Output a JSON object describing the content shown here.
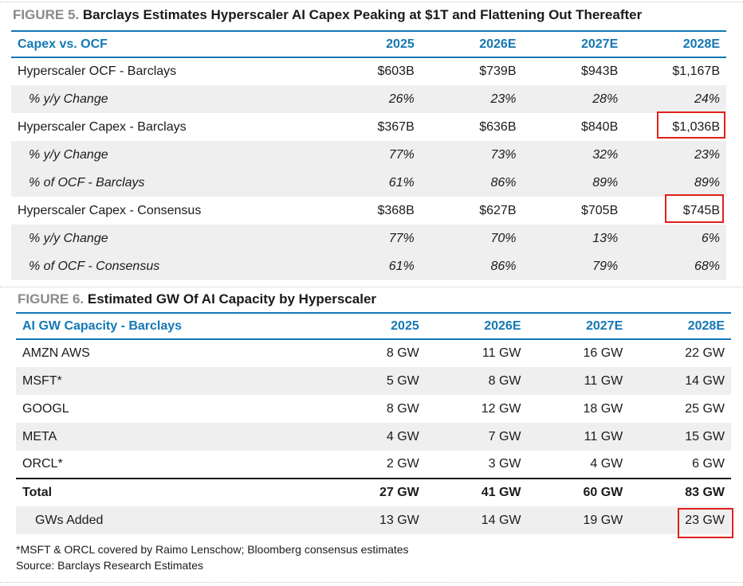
{
  "figure5": {
    "label": "FIGURE 5.",
    "title": "Barclays Estimates Hyperscaler AI Capex Peaking at $1T and Flattening Out Thereafter",
    "header": [
      "Capex vs. OCF",
      "2025",
      "2026E",
      "2027E",
      "2028E"
    ],
    "rows": [
      {
        "label": "Hyperscaler OCF - Barclays",
        "values": [
          "$603B",
          "$739B",
          "$943B",
          "$1,167B"
        ],
        "style": "main"
      },
      {
        "label": "% y/y Change",
        "values": [
          "26%",
          "23%",
          "28%",
          "24%"
        ],
        "style": "sub"
      },
      {
        "label": "Hyperscaler Capex - Barclays",
        "values": [
          "$367B",
          "$636B",
          "$840B",
          "$1,036B"
        ],
        "style": "main"
      },
      {
        "label": "% y/y Change",
        "values": [
          "77%",
          "73%",
          "32%",
          "23%"
        ],
        "style": "sub"
      },
      {
        "label": "% of OCF - Barclays",
        "values": [
          "61%",
          "86%",
          "89%",
          "89%"
        ],
        "style": "sub"
      },
      {
        "label": "Hyperscaler Capex - Consensus",
        "values": [
          "$368B",
          "$627B",
          "$705B",
          "$745B"
        ],
        "style": "main"
      },
      {
        "label": "% y/y Change",
        "values": [
          "77%",
          "70%",
          "13%",
          "6%"
        ],
        "style": "sub"
      },
      {
        "label": "% of OCF - Consensus",
        "values": [
          "61%",
          "86%",
          "79%",
          "68%"
        ],
        "style": "sub"
      }
    ]
  },
  "figure6": {
    "label": "FIGURE 6.",
    "title": "Estimated GW Of AI Capacity by Hyperscaler",
    "header": [
      "AI GW Capacity - Barclays",
      "2025",
      "2026E",
      "2027E",
      "2028E"
    ],
    "rows": [
      {
        "label": "AMZN AWS",
        "values": [
          "8 GW",
          "11 GW",
          "16 GW",
          "22 GW"
        ]
      },
      {
        "label": "MSFT*",
        "values": [
          "5 GW",
          "8 GW",
          "11 GW",
          "14 GW"
        ]
      },
      {
        "label": "GOOGL",
        "values": [
          "8 GW",
          "12 GW",
          "18 GW",
          "25 GW"
        ]
      },
      {
        "label": "META",
        "values": [
          "4 GW",
          "7 GW",
          "11 GW",
          "15 GW"
        ]
      },
      {
        "label": "ORCL*",
        "values": [
          "2 GW",
          "3 GW",
          "4 GW",
          "6 GW"
        ]
      }
    ],
    "total": {
      "label": "Total",
      "values": [
        "27 GW",
        "41 GW",
        "60 GW",
        "83 GW"
      ]
    },
    "added": {
      "label": "GWs Added",
      "values": [
        "13 GW",
        "14 GW",
        "19 GW",
        "23 GW"
      ]
    }
  },
  "footnotes": {
    "note": "*MSFT & ORCL covered by Raimo Lenschow; Bloomberg consensus estimates",
    "source": "Source: Barclays Research Estimates"
  },
  "colors": {
    "accent": "#1478b4",
    "highlight": "#e0201b",
    "shade": "#efefef"
  }
}
